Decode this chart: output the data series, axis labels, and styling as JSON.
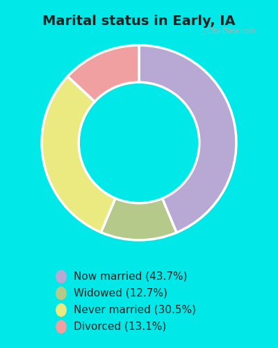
{
  "title": "Marital status in Early, IA",
  "categories": [
    "Now married",
    "Widowed",
    "Never married",
    "Divorced"
  ],
  "values": [
    43.7,
    12.7,
    30.5,
    13.1
  ],
  "colors": [
    "#b8a9d4",
    "#b5c98a",
    "#eaea80",
    "#f0a0a0"
  ],
  "legend_labels": [
    "Now married (43.7%)",
    "Widowed (12.7%)",
    "Never married (30.5%)",
    "Divorced (13.1%)"
  ],
  "bg_cyan": "#00e8e8",
  "bg_chart": "#daeede",
  "title_fontsize": 14,
  "legend_fontsize": 11,
  "donut_width": 0.38,
  "start_angle": 90,
  "title_color": "#222222",
  "watermark_color": "#aaaaaa"
}
